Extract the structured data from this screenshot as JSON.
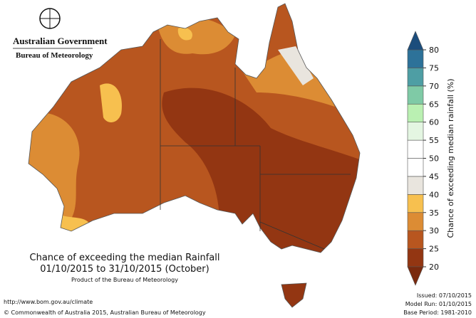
{
  "header": {
    "government": "Australian Government",
    "agency": "Bureau of Meteorology"
  },
  "title": {
    "line1": "Chance of exceeding the median Rainfall",
    "line2": "01/10/2015 to 31/10/2015 (October)",
    "product": "Product of the Bureau of Meteorology"
  },
  "legend": {
    "label": "Chance of exceeding median rainfall (%)",
    "ticks": [
      20,
      25,
      30,
      35,
      40,
      45,
      50,
      55,
      60,
      65,
      70,
      75,
      80
    ],
    "below_color": "#7a2a0e",
    "band_colors": [
      "#933612",
      "#b8561f",
      "#dc8c34",
      "#f7c04f",
      "#e9e5de",
      "#ffffff",
      "#ffffff",
      "#e4f6e2",
      "#baf0b2",
      "#7fcaa6",
      "#4e9ea4",
      "#2d7299"
    ],
    "above_color": "#1c4d7c"
  },
  "footer": {
    "url": "http://www.bom.gov.au/climate",
    "copyright": "© Commonwealth of Australia 2015, Australian Bureau of Meteorology",
    "issued": "Issued: 07/10/2015",
    "model_run": "Model Run: 01/10/2015",
    "base_period": "Base Period: 1981-2010"
  }
}
